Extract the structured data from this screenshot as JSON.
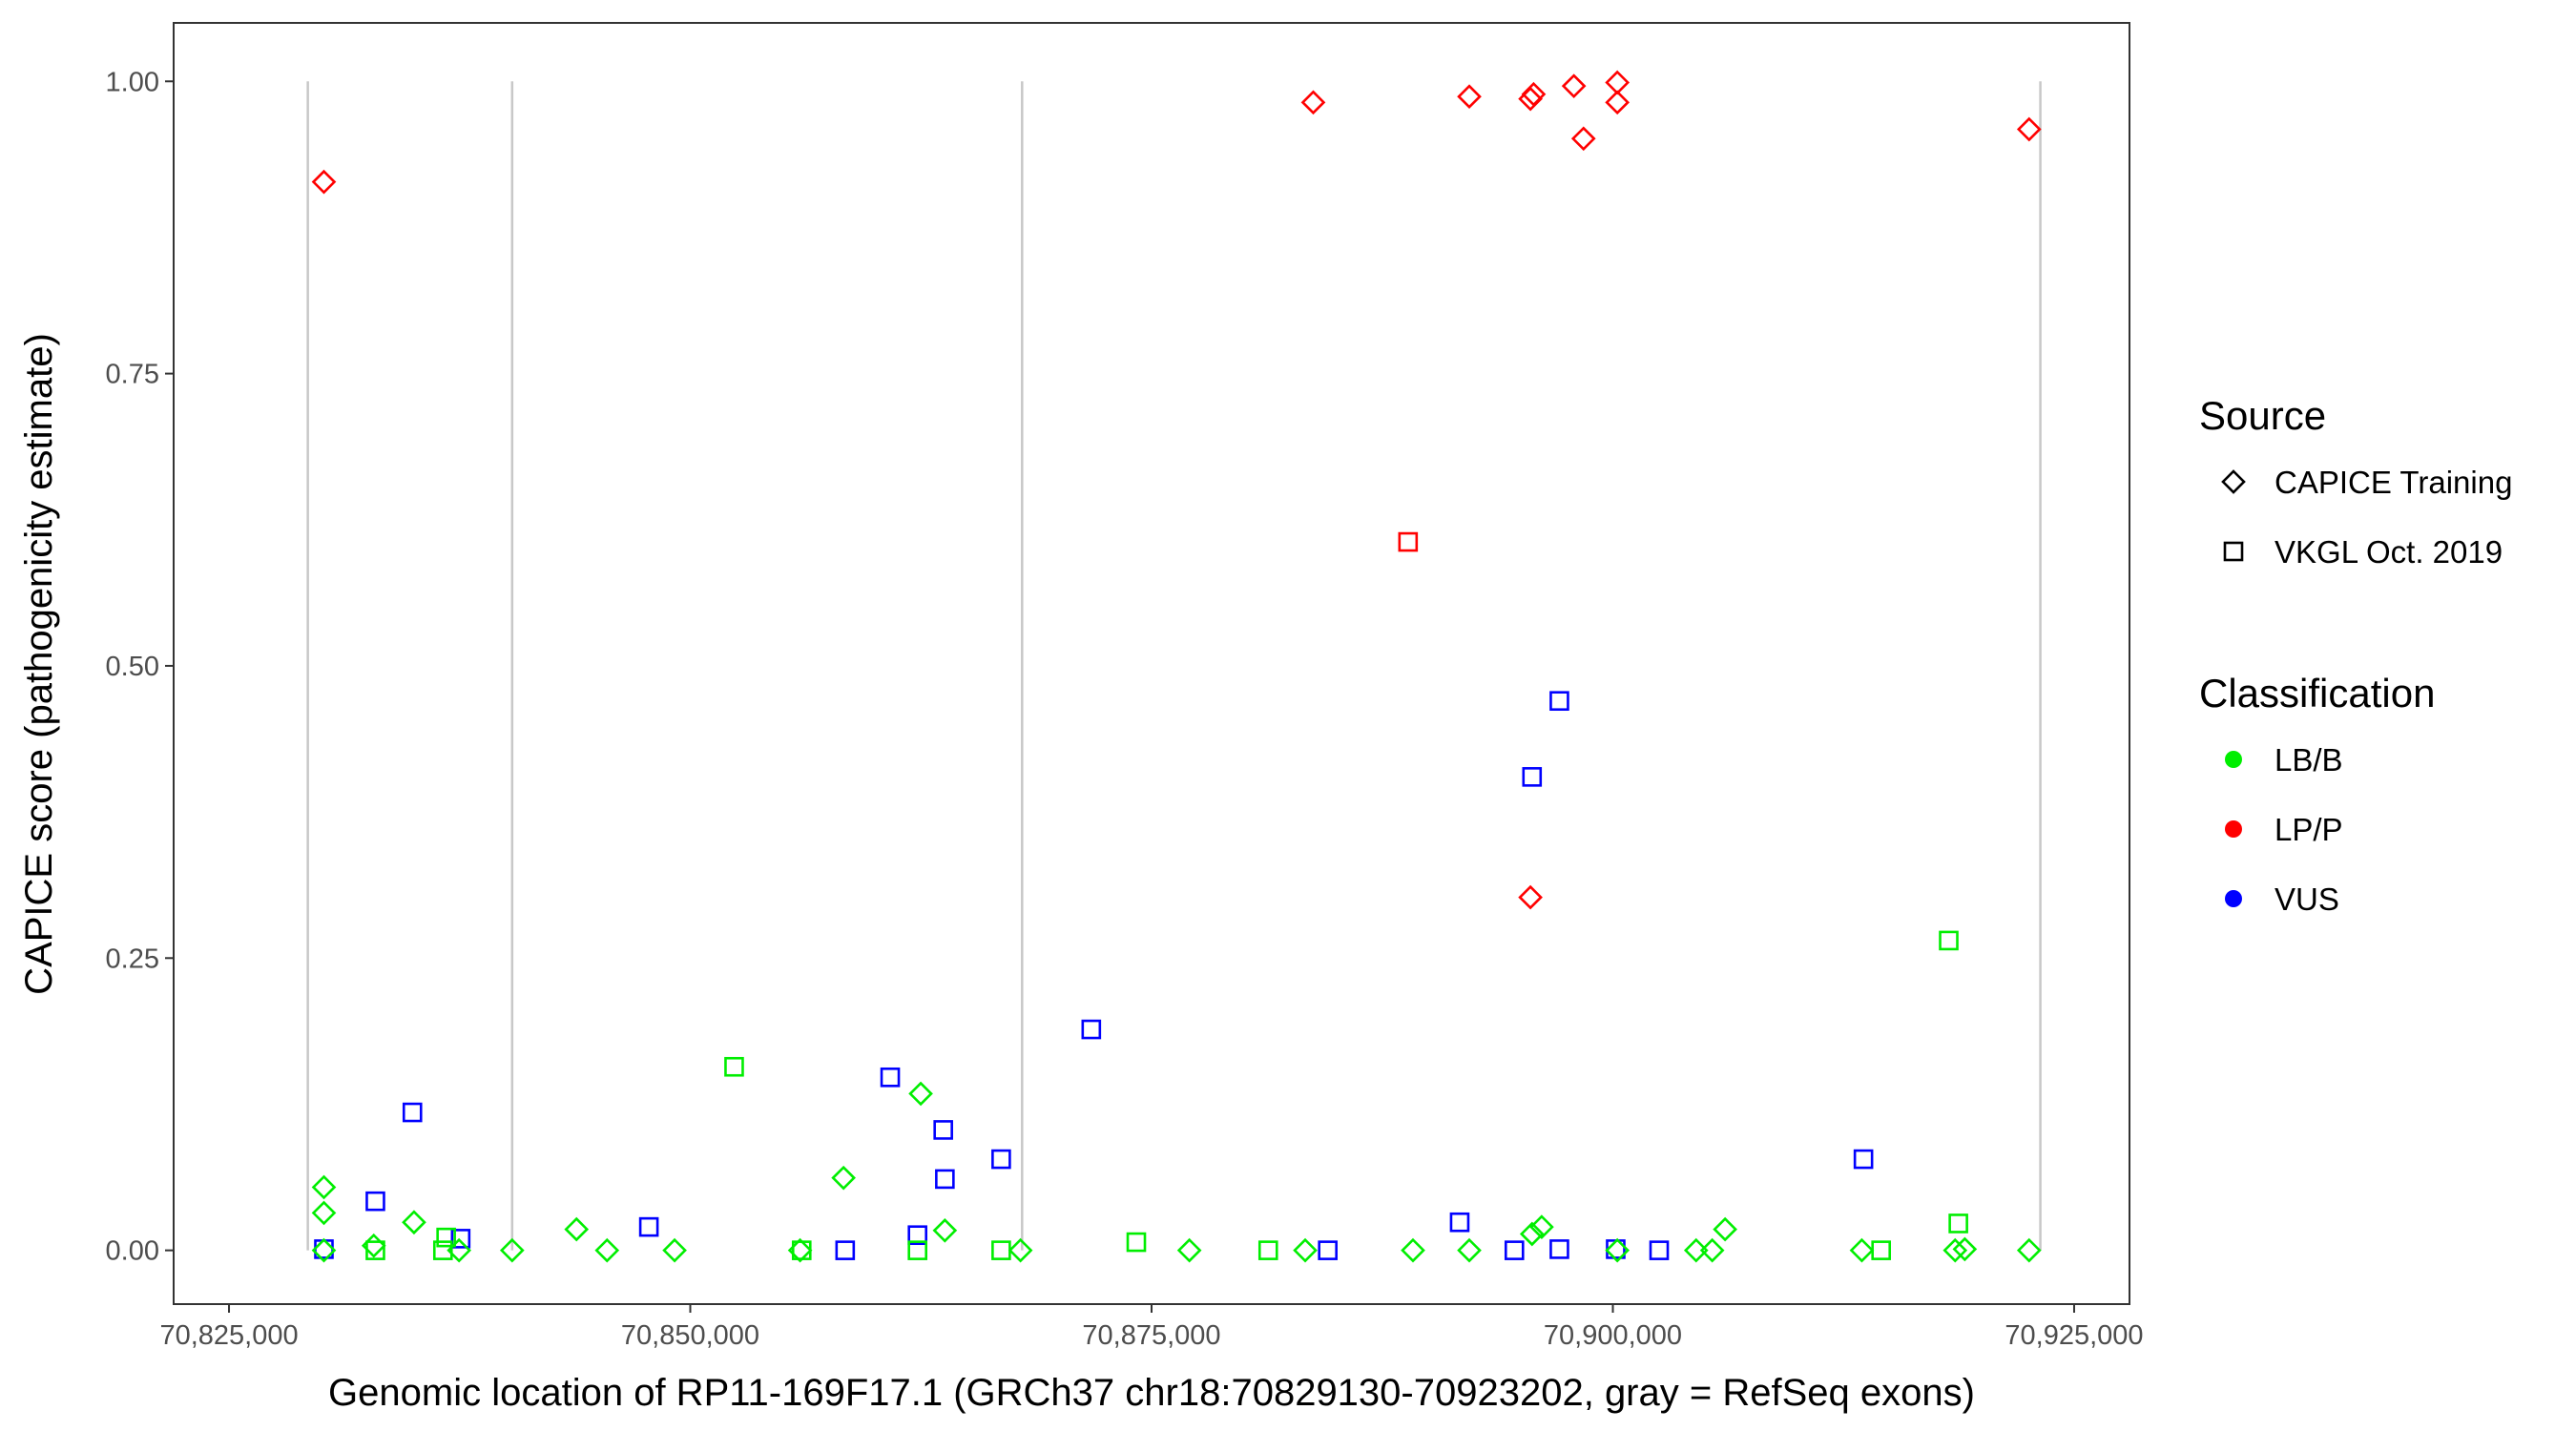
{
  "chart_data": {
    "type": "scatter",
    "xlabel": "Genomic location of RP11-169F17.1 (GRCh37 chr18:70829130-70923202, gray = RefSeq exons)",
    "ylabel": "CAPICE score (pathogenicity estimate)",
    "xlim": [
      70822000,
      70928000
    ],
    "ylim": [
      -0.046,
      1.05
    ],
    "xticks": [
      70825000,
      70850000,
      70875000,
      70900000,
      70925000
    ],
    "xtick_labels": [
      "70,825,000",
      "70,850,000",
      "70,875,000",
      "70,900,000",
      "70,925,000"
    ],
    "yticks": [
      0,
      0.25,
      0.5,
      0.75,
      1
    ],
    "ytick_labels": [
      "0.00",
      "0.25",
      "0.50",
      "0.75",
      "1.00"
    ],
    "grid": false,
    "exon_lines": [
      70829272,
      70840346,
      70867983,
      70923169
    ],
    "colors": {
      "LB/B": "#00ee00",
      "LP/P": "#ff0000",
      "VUS": "#0000ff"
    },
    "legend": {
      "placement": "right",
      "source_title": "Source",
      "source_items": [
        {
          "label": "CAPICE Training",
          "shape": "diamond"
        },
        {
          "label": "VKGL Oct. 2019",
          "shape": "square"
        }
      ],
      "class_title": "Classification",
      "class_items": [
        {
          "label": "LB/B",
          "color": "#00ee00"
        },
        {
          "label": "LP/P",
          "color": "#ff0000"
        },
        {
          "label": "VUS",
          "color": "#0000ff"
        }
      ]
    },
    "series": [
      {
        "name": "CAPICE Training / LP/P",
        "shape": "diamond",
        "class": "LP/P",
        "points": [
          [
            70830144,
            0.914
          ],
          [
            70883763,
            0.982
          ],
          [
            70892220,
            0.987
          ],
          [
            70895533,
            0.985
          ],
          [
            70895707,
            0.989
          ],
          [
            70897888,
            0.996
          ],
          [
            70900242,
            0.999
          ],
          [
            70900242,
            0.982
          ],
          [
            70898411,
            0.951
          ],
          [
            70922560,
            0.959
          ],
          [
            70895533,
            0.302
          ]
        ]
      },
      {
        "name": "VKGL Oct. 2019 / LP/P",
        "shape": "square",
        "class": "LP/P",
        "points": [
          [
            70888900,
            0.606
          ]
        ]
      },
      {
        "name": "VKGL Oct. 2019 / VUS",
        "shape": "square",
        "class": "VUS",
        "points": [
          [
            70830144,
            0.001
          ],
          [
            70832934,
            0.042
          ],
          [
            70834940,
            0.118
          ],
          [
            70837555,
            0.01
          ],
          [
            70847756,
            0.02
          ],
          [
            70858393,
            0.0
          ],
          [
            70860834,
            0.148
          ],
          [
            70862316,
            0.013
          ],
          [
            70863711,
            0.103
          ],
          [
            70863798,
            0.061
          ],
          [
            70866850,
            0.078
          ],
          [
            70871733,
            0.189
          ],
          [
            70884549,
            0.0
          ],
          [
            70891699,
            0.024
          ],
          [
            70894663,
            0.0
          ],
          [
            70895620,
            0.405
          ],
          [
            70897102,
            0.47
          ],
          [
            70897102,
            0.001
          ],
          [
            70900154,
            0.001
          ],
          [
            70902508,
            0.0
          ],
          [
            70913581,
            0.078
          ]
        ]
      },
      {
        "name": "VKGL Oct. 2019 / LB/B",
        "shape": "square",
        "class": "LB/B",
        "points": [
          [
            70832934,
            0.0
          ],
          [
            70836596,
            0.0
          ],
          [
            70836770,
            0.011
          ],
          [
            70852376,
            0.157
          ],
          [
            70856038,
            0.0
          ],
          [
            70862316,
            0.0
          ],
          [
            70866850,
            0.0
          ],
          [
            70874173,
            0.007
          ],
          [
            70881322,
            0.0
          ],
          [
            70914540,
            0.0
          ],
          [
            70918202,
            0.265
          ],
          [
            70918725,
            0.023
          ]
        ]
      },
      {
        "name": "CAPICE Training / LB/B",
        "shape": "diamond",
        "class": "LB/B",
        "points": [
          [
            70830144,
            0.054
          ],
          [
            70830144,
            0.032
          ],
          [
            70830144,
            0.0
          ],
          [
            70832847,
            0.004
          ],
          [
            70835027,
            0.024
          ],
          [
            70837468,
            0.0
          ],
          [
            70840346,
            0.0
          ],
          [
            70843833,
            0.018
          ],
          [
            70845489,
            0.0
          ],
          [
            70849151,
            0.0
          ],
          [
            70855951,
            0.0
          ],
          [
            70858306,
            0.062
          ],
          [
            70862490,
            0.134
          ],
          [
            70863798,
            0.017
          ],
          [
            70867896,
            0.0
          ],
          [
            70877050,
            0.0
          ],
          [
            70883327,
            0.0
          ],
          [
            70889168,
            0.0
          ],
          [
            70892220,
            0.0
          ],
          [
            70895620,
            0.014
          ],
          [
            70896143,
            0.02
          ],
          [
            70900242,
            0.0
          ],
          [
            70904514,
            0.0
          ],
          [
            70905386,
            0.0
          ],
          [
            70906083,
            0.018
          ],
          [
            70913494,
            0.0
          ],
          [
            70918551,
            0.0
          ],
          [
            70919074,
            0.001
          ],
          [
            70922560,
            0.0
          ]
        ]
      }
    ]
  }
}
